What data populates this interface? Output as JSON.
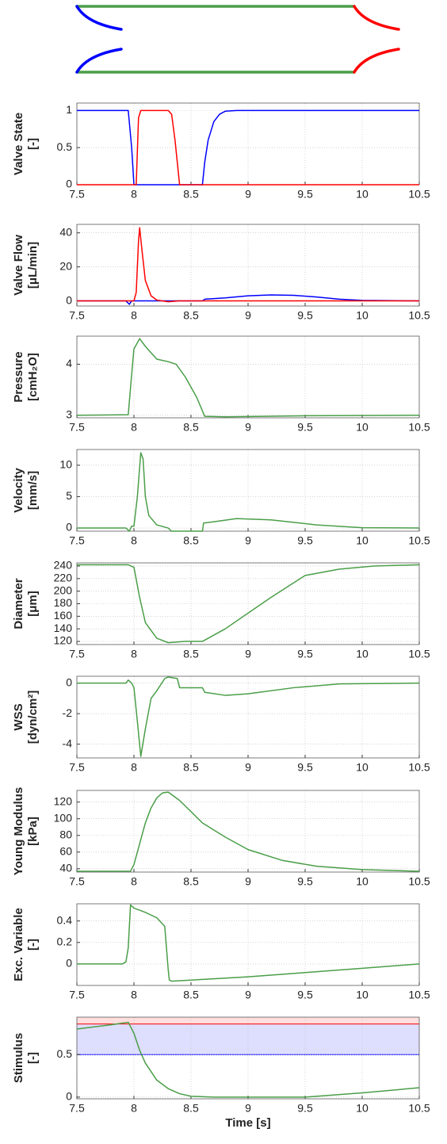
{
  "chart_data": [
    {
      "type": "line",
      "ylabel": [
        "Valve State",
        "[-]"
      ],
      "xlim": [
        7.5,
        10.5
      ],
      "xticks": [
        7.5,
        8,
        8.5,
        9,
        9.5,
        10,
        10.5
      ],
      "ylim": [
        0,
        1.1
      ],
      "yticks": [
        0,
        0.5,
        1
      ],
      "grid": true,
      "x": [
        7.5,
        7.9,
        7.95,
        7.98,
        8.0,
        8.02,
        8.04,
        8.06,
        8.3,
        8.33,
        8.36,
        8.4,
        8.6,
        8.62,
        8.65,
        8.7,
        8.75,
        8.8,
        8.9,
        10.5
      ],
      "series": [
        {
          "color": "#0000ff",
          "values": [
            1,
            1,
            1,
            0.5,
            0,
            0,
            0,
            0,
            0,
            0,
            0,
            0,
            0,
            0.3,
            0.6,
            0.85,
            0.95,
            0.99,
            1,
            1
          ]
        },
        {
          "color": "#ff0000",
          "values": [
            0,
            0,
            0,
            0,
            0,
            0,
            0.9,
            1,
            1,
            0.95,
            0.6,
            0,
            0,
            0,
            0,
            0,
            0,
            0,
            0,
            0
          ]
        }
      ]
    },
    {
      "type": "line",
      "ylabel": [
        "Valve Flow",
        "[μL/min]"
      ],
      "xlim": [
        7.5,
        10.5
      ],
      "xticks": [
        7.5,
        8,
        8.5,
        9,
        9.5,
        10,
        10.5
      ],
      "ylim": [
        -3,
        45
      ],
      "yticks": [
        0,
        20,
        40
      ],
      "grid": true,
      "x": [
        7.5,
        7.93,
        7.96,
        7.98,
        8.0,
        8.02,
        8.04,
        8.05,
        8.07,
        8.1,
        8.15,
        8.2,
        8.3,
        8.4,
        8.6,
        8.62,
        8.8,
        9.0,
        9.2,
        9.4,
        9.6,
        9.8,
        10.0,
        10.5
      ],
      "series": [
        {
          "color": "#0000ff",
          "values": [
            0,
            0,
            -2,
            0,
            0,
            0,
            0,
            0,
            0,
            0,
            0,
            0,
            0,
            0,
            0,
            1,
            1.8,
            3,
            3.5,
            3.3,
            2.3,
            1,
            0.3,
            0
          ]
        },
        {
          "color": "#ff0000",
          "values": [
            0,
            0,
            0,
            0,
            0,
            5,
            35,
            43,
            30,
            12,
            3,
            0.5,
            -0.5,
            0,
            0,
            0,
            0,
            0,
            0,
            0,
            0,
            0,
            0,
            0
          ]
        }
      ]
    },
    {
      "type": "line",
      "ylabel": [
        "Pressure",
        "[cmH₂O]"
      ],
      "xlim": [
        7.5,
        10.5
      ],
      "xticks": [
        7.5,
        8,
        8.5,
        9,
        9.5,
        10,
        10.5
      ],
      "ylim": [
        2.95,
        4.55
      ],
      "yticks": [
        3,
        4
      ],
      "grid": true,
      "x": [
        7.5,
        7.95,
        7.98,
        8.0,
        8.05,
        8.1,
        8.2,
        8.3,
        8.37,
        8.45,
        8.55,
        8.62,
        8.8,
        9.5,
        10.5
      ],
      "series": [
        {
          "color": "#4a9e48",
          "values": [
            3,
            3.01,
            3.8,
            4.3,
            4.5,
            4.35,
            4.1,
            4.05,
            4.0,
            3.75,
            3.35,
            2.98,
            2.97,
            2.99,
            3.0
          ]
        }
      ]
    },
    {
      "type": "line",
      "ylabel": [
        "Velocity",
        "[mm/s]"
      ],
      "xlim": [
        7.5,
        10.5
      ],
      "xticks": [
        7.5,
        8,
        8.5,
        9,
        9.5,
        10,
        10.5
      ],
      "ylim": [
        -0.5,
        12.5
      ],
      "yticks": [
        0,
        5,
        10
      ],
      "grid": true,
      "x": [
        7.5,
        7.93,
        7.96,
        7.98,
        8.0,
        8.03,
        8.06,
        8.08,
        8.1,
        8.13,
        8.2,
        8.3,
        8.33,
        8.4,
        8.6,
        8.61,
        8.7,
        8.9,
        9.2,
        9.6,
        10.0,
        10.5
      ],
      "series": [
        {
          "color": "#4a9e48",
          "values": [
            0,
            0,
            -0.5,
            0.3,
            0.3,
            5,
            12,
            11,
            5,
            2,
            0.5,
            0,
            -0.5,
            -0.5,
            -0.5,
            0.8,
            1,
            1.5,
            1.3,
            0.5,
            0.05,
            0
          ]
        }
      ]
    },
    {
      "type": "line",
      "ylabel": [
        "Diameter",
        "[μm]"
      ],
      "xlim": [
        7.5,
        10.5
      ],
      "xticks": [
        7.5,
        8,
        8.5,
        9,
        9.5,
        10,
        10.5
      ],
      "ylim": [
        115,
        245
      ],
      "yticks": [
        120,
        140,
        160,
        180,
        200,
        220,
        240
      ],
      "grid": true,
      "x": [
        7.5,
        7.95,
        8.0,
        8.05,
        8.1,
        8.2,
        8.3,
        8.45,
        8.6,
        8.8,
        9.0,
        9.2,
        9.5,
        9.8,
        10.1,
        10.5
      ],
      "series": [
        {
          "color": "#4a9e48",
          "values": [
            242,
            242,
            238,
            190,
            150,
            125,
            118,
            120,
            120,
            140,
            165,
            190,
            225,
            235,
            240,
            242
          ]
        }
      ]
    },
    {
      "type": "line",
      "ylabel": [
        "WSS",
        "[dyn/cm²]"
      ],
      "xlim": [
        7.5,
        10.5
      ],
      "xticks": [
        7.5,
        8,
        8.5,
        9,
        9.5,
        10,
        10.5
      ],
      "ylim": [
        -4.9,
        0.45
      ],
      "yticks": [
        -4,
        -2,
        0
      ],
      "grid": true,
      "x": [
        7.5,
        7.93,
        7.95,
        7.98,
        8.0,
        8.03,
        8.06,
        8.1,
        8.15,
        8.2,
        8.27,
        8.3,
        8.38,
        8.4,
        8.6,
        8.62,
        8.8,
        9.0,
        9.4,
        9.8,
        10.5
      ],
      "series": [
        {
          "color": "#4a9e48",
          "values": [
            0,
            0,
            0.2,
            0,
            -0.3,
            -2.5,
            -4.8,
            -3,
            -1,
            -0.5,
            0.3,
            0.4,
            0.3,
            -0.3,
            -0.3,
            -0.6,
            -0.8,
            -0.7,
            -0.3,
            -0.05,
            0
          ]
        }
      ]
    },
    {
      "type": "line",
      "ylabel": [
        "Young Modulus",
        "[kPa]"
      ],
      "xlim": [
        7.5,
        10.5
      ],
      "xticks": [
        7.5,
        8,
        8.5,
        9,
        9.5,
        10,
        10.5
      ],
      "ylim": [
        36,
        134
      ],
      "yticks": [
        40,
        60,
        80,
        100,
        120
      ],
      "grid": true,
      "x": [
        7.5,
        7.97,
        8.0,
        8.05,
        8.1,
        8.15,
        8.2,
        8.25,
        8.3,
        8.4,
        8.6,
        8.8,
        9.0,
        9.3,
        9.6,
        10.0,
        10.5
      ],
      "series": [
        {
          "color": "#4a9e48",
          "values": [
            37,
            37,
            45,
            70,
            95,
            113,
            125,
            131,
            132,
            122,
            95,
            78,
            63,
            50,
            43,
            39,
            37
          ]
        }
      ]
    },
    {
      "type": "line",
      "ylabel": [
        "Exc. Variable",
        "[-]"
      ],
      "xlim": [
        7.5,
        10.5
      ],
      "xticks": [
        7.5,
        8,
        8.5,
        9,
        9.5,
        10,
        10.5
      ],
      "ylim": [
        -0.2,
        0.56
      ],
      "yticks": [
        0,
        0.2,
        0.4
      ],
      "grid": true,
      "x": [
        7.5,
        7.9,
        7.93,
        7.95,
        7.97,
        8.0,
        8.1,
        8.2,
        8.27,
        8.3,
        8.31,
        8.33,
        8.5,
        9.0,
        9.5,
        10.0,
        10.5
      ],
      "series": [
        {
          "color": "#4a9e48",
          "values": [
            0,
            0,
            0.02,
            0.15,
            0.55,
            0.52,
            0.48,
            0.43,
            0.35,
            -0.05,
            -0.15,
            -0.16,
            -0.15,
            -0.12,
            -0.08,
            -0.04,
            0
          ]
        }
      ]
    },
    {
      "type": "line",
      "ylabel": [
        "Stimulus",
        "[-]"
      ],
      "xlabel": "Time [s]",
      "xlim": [
        7.5,
        10.5
      ],
      "xticks": [
        7.5,
        8,
        8.5,
        9,
        9.5,
        10,
        10.5
      ],
      "ylim": [
        -0.02,
        0.94
      ],
      "yticks": [
        0,
        0.5
      ],
      "grid": true,
      "bands": [
        {
          "from": 0.5,
          "to": 0.86,
          "color": "#0000ff"
        },
        {
          "from": 0.86,
          "to": 0.94,
          "color": "#ff0000"
        }
      ],
      "x": [
        7.5,
        7.8,
        7.95,
        8.0,
        8.05,
        8.1,
        8.2,
        8.3,
        8.4,
        8.5,
        8.7,
        9.0,
        9.5,
        10.0,
        10.5
      ],
      "series": [
        {
          "color": "#4a9e48",
          "values": [
            0.8,
            0.85,
            0.88,
            0.75,
            0.55,
            0.4,
            0.2,
            0.1,
            0.04,
            0.01,
            0,
            0,
            0,
            0.05,
            0.11
          ]
        }
      ]
    }
  ]
}
